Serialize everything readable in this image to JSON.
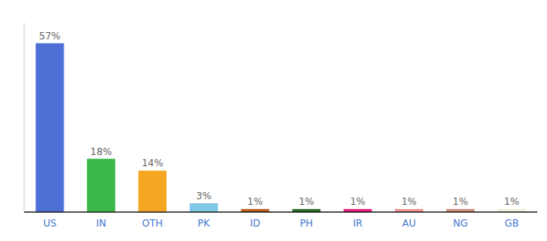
{
  "chart_data": {
    "type": "bar",
    "categories": [
      "US",
      "IN",
      "OTH",
      "PK",
      "ID",
      "PH",
      "IR",
      "AU",
      "NG",
      "GB"
    ],
    "values": [
      57,
      18,
      14,
      3,
      1,
      1,
      1,
      1,
      1,
      1
    ],
    "value_labels": [
      "57%",
      "18%",
      "14%",
      "3%",
      "1%",
      "1%",
      "1%",
      "1%",
      "1%",
      "1%"
    ],
    "colors": [
      "#4D6FD6",
      "#3CB84A",
      "#F5A623",
      "#80C8E8",
      "#B85A18",
      "#236B23",
      "#E8197A",
      "#F09090",
      "#D4887A",
      "#F0EDD8"
    ],
    "ylim": [
      0,
      64
    ],
    "data_labels": true,
    "tick_labels": "x",
    "grid": false
  }
}
